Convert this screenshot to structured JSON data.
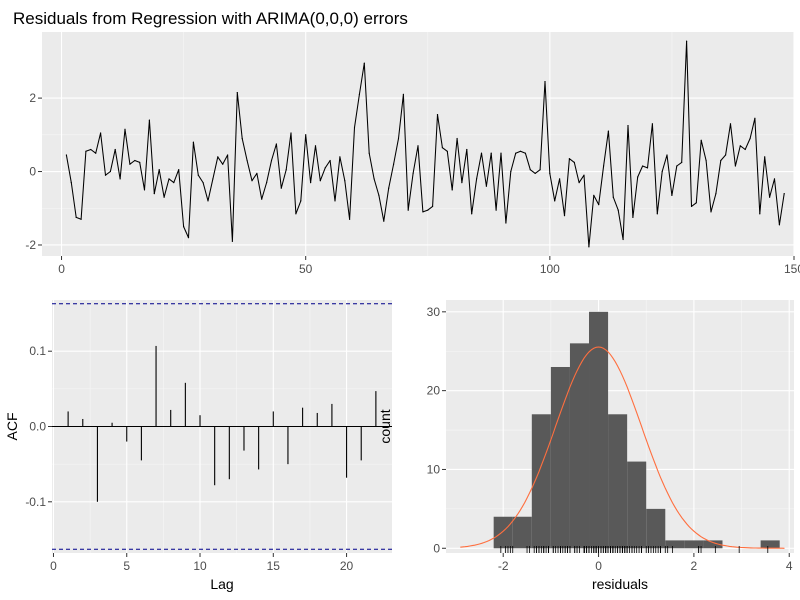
{
  "chart_data": [
    {
      "type": "line",
      "title": "Residuals from Regression with ARIMA(0,0,0) errors",
      "xlabel": "",
      "ylabel": "",
      "xlim": [
        -4,
        150
      ],
      "ylim": [
        -2.3,
        3.8
      ],
      "xticks": [
        0,
        50,
        100,
        150
      ],
      "yticks": [
        -2,
        0,
        2
      ],
      "grid": true,
      "x_start": 1,
      "values": [
        0.45,
        -0.3,
        -1.25,
        -1.3,
        0.55,
        0.6,
        0.5,
        1.05,
        -0.1,
        0.0,
        0.6,
        -0.2,
        1.15,
        0.2,
        0.3,
        0.25,
        -0.5,
        1.4,
        -0.6,
        0.05,
        -0.7,
        -0.2,
        -0.3,
        0.05,
        -1.5,
        -1.8,
        0.8,
        -0.1,
        -0.3,
        -0.8,
        -0.2,
        0.4,
        0.2,
        0.45,
        -1.9,
        2.15,
        0.9,
        0.3,
        -0.25,
        -0.05,
        -0.75,
        -0.3,
        0.3,
        0.75,
        -0.45,
        0.05,
        1.05,
        -1.15,
        -0.8,
        1.0,
        -0.3,
        0.7,
        -0.25,
        0.1,
        0.3,
        -0.8,
        0.4,
        -0.25,
        -1.3,
        1.2,
        2.1,
        2.95,
        0.5,
        -0.2,
        -0.65,
        -1.35,
        -0.45,
        0.2,
        0.9,
        2.1,
        -1.05,
        -0.05,
        0.7,
        -1.1,
        -1.05,
        -0.95,
        1.55,
        0.65,
        0.55,
        -0.5,
        0.9,
        -0.3,
        0.6,
        -1.15,
        -0.2,
        0.5,
        -0.4,
        0.5,
        -1.05,
        0.5,
        -1.4,
        0.0,
        0.5,
        0.55,
        0.5,
        0.05,
        -0.05,
        0.05,
        2.45,
        -0.05,
        -0.8,
        -0.2,
        -1.2,
        0.35,
        0.25,
        -0.3,
        -0.1,
        -2.05,
        -0.65,
        -0.9,
        0.15,
        1.1,
        -0.7,
        -1.05,
        -1.85,
        1.25,
        -1.25,
        -0.15,
        0.15,
        0.1,
        1.3,
        -1.15,
        0.0,
        0.45,
        -0.65,
        0.15,
        0.25,
        3.55,
        -0.95,
        -0.85,
        0.85,
        0.3,
        -1.1,
        -0.6,
        0.3,
        0.45,
        1.3,
        0.15,
        0.7,
        0.6,
        0.9,
        1.45,
        -1.15,
        0.4,
        -0.7,
        -0.2,
        -1.45,
        -0.6
      ]
    },
    {
      "type": "bar",
      "title": "",
      "xlabel": "Lag",
      "ylabel": "ACF",
      "xlim": [
        -0.1,
        23.1
      ],
      "ylim": [
        -0.168,
        0.168
      ],
      "xticks": [
        0,
        5,
        10,
        15,
        20
      ],
      "yticks": [
        -0.1,
        0.0,
        0.1
      ],
      "ytick_labels": [
        "-0.1",
        "0.0",
        "0.1"
      ],
      "grid": true,
      "confidence_bound": 0.163,
      "confidence_color": "#00008b",
      "lags": [
        1,
        2,
        3,
        4,
        5,
        6,
        7,
        8,
        9,
        10,
        11,
        12,
        13,
        14,
        15,
        16,
        17,
        18,
        19,
        20,
        21,
        22
      ],
      "values": [
        0.02,
        0.01,
        -0.1,
        0.005,
        -0.02,
        -0.045,
        0.107,
        0.022,
        0.058,
        0.015,
        -0.078,
        -0.07,
        -0.032,
        -0.057,
        0.02,
        -0.05,
        0.025,
        0.018,
        0.03,
        -0.068,
        -0.045,
        0.047
      ]
    },
    {
      "type": "histogram",
      "title": "",
      "xlabel": "residuals",
      "ylabel": "count",
      "xlim": [
        -3.2,
        4.1
      ],
      "ylim": [
        -0.6,
        31.5
      ],
      "xticks": [
        -2,
        0,
        2,
        4
      ],
      "yticks": [
        0,
        10,
        20,
        30
      ],
      "grid": true,
      "bin_width": 0.4,
      "bin_starts": [
        -2.2,
        -1.8,
        -1.4,
        -1.0,
        -0.6,
        -0.2,
        0.2,
        0.6,
        1.0,
        1.4,
        1.8,
        2.2,
        2.6,
        3.0,
        3.4
      ],
      "counts": [
        4,
        4,
        17,
        23,
        26,
        30,
        17,
        11,
        5,
        1,
        1,
        1,
        0,
        0,
        1
      ],
      "bar_color": "#595959",
      "density_curve": {
        "mean": 0.0,
        "sd": 0.9,
        "scale": 57.6,
        "color": "#ff6f3f",
        "x_range": [
          -2.9,
          3.9
        ]
      },
      "rug": [
        -2.05,
        -1.95,
        -1.9,
        -1.85,
        -1.8,
        -1.5,
        -1.45,
        -1.35,
        -1.3,
        -1.3,
        -1.25,
        -1.25,
        -1.2,
        -1.15,
        -1.15,
        -1.15,
        -1.1,
        -1.05,
        -1.05,
        -1.05,
        -1.05,
        -0.95,
        -0.95,
        -0.9,
        -0.85,
        -0.8,
        -0.8,
        -0.8,
        -0.75,
        -0.7,
        -0.7,
        -0.65,
        -0.65,
        -0.65,
        -0.6,
        -0.6,
        -0.5,
        -0.5,
        -0.45,
        -0.45,
        -0.4,
        -0.3,
        -0.3,
        -0.3,
        -0.3,
        -0.3,
        -0.25,
        -0.25,
        -0.25,
        -0.2,
        -0.2,
        -0.2,
        -0.2,
        -0.2,
        -0.15,
        -0.1,
        -0.1,
        -0.1,
        -0.05,
        -0.05,
        -0.05,
        -0.05,
        -0.05,
        0.0,
        0.0,
        0.0,
        0.05,
        0.05,
        0.05,
        0.05,
        0.05,
        0.1,
        0.1,
        0.15,
        0.15,
        0.15,
        0.15,
        0.2,
        0.2,
        0.2,
        0.25,
        0.25,
        0.25,
        0.3,
        0.3,
        0.3,
        0.3,
        0.3,
        0.35,
        0.4,
        0.4,
        0.45,
        0.45,
        0.45,
        0.5,
        0.5,
        0.5,
        0.5,
        0.5,
        0.5,
        0.55,
        0.55,
        0.55,
        0.6,
        0.6,
        0.6,
        0.65,
        0.7,
        0.7,
        0.7,
        0.75,
        0.8,
        0.85,
        0.9,
        0.9,
        0.9,
        1.0,
        1.05,
        1.05,
        1.1,
        1.15,
        1.2,
        1.25,
        1.3,
        1.3,
        1.4,
        1.45,
        1.55,
        2.1,
        2.1,
        2.15,
        2.45,
        2.95,
        3.55
      ]
    }
  ]
}
